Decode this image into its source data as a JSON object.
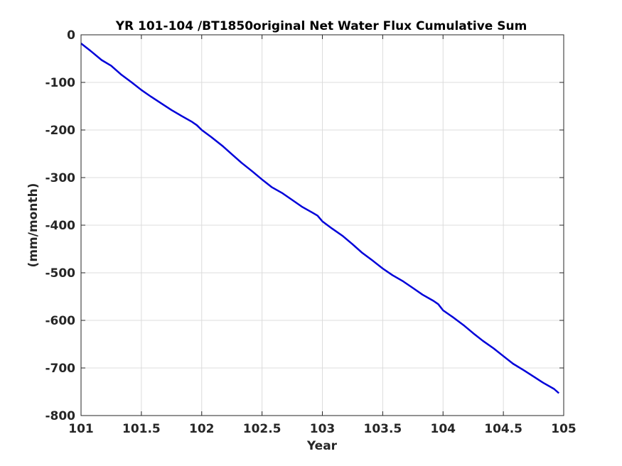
{
  "chart_data": {
    "type": "line",
    "title": "YR 101-104 /BT1850original Net Water Flux Cumulative Sum",
    "xlabel": "Year",
    "ylabel": "(mm/month)",
    "xlim": [
      101,
      105
    ],
    "ylim": [
      -800,
      0
    ],
    "xticks": [
      101,
      101.5,
      102,
      102.5,
      103,
      103.5,
      104,
      104.5,
      105
    ],
    "xtick_labels": [
      "101",
      "101.5",
      "102",
      "102.5",
      "103",
      "103.5",
      "104",
      "104.5",
      "105"
    ],
    "yticks": [
      0,
      -100,
      -200,
      -300,
      -400,
      -500,
      -600,
      -700,
      -800
    ],
    "ytick_labels": [
      "0",
      "-100",
      "-200",
      "-300",
      "-400",
      "-500",
      "-600",
      "-700",
      "-800"
    ],
    "grid": true,
    "series": [
      {
        "color": "#0000d9",
        "x": [
          101.0,
          101.08,
          101.17,
          101.25,
          101.33,
          101.42,
          101.5,
          101.58,
          101.67,
          101.75,
          101.83,
          101.92,
          101.96,
          102.0,
          102.08,
          102.17,
          102.25,
          102.33,
          102.42,
          102.5,
          102.58,
          102.67,
          102.75,
          102.83,
          102.92,
          102.96,
          103.0,
          103.08,
          103.17,
          103.25,
          103.33,
          103.42,
          103.5,
          103.58,
          103.67,
          103.75,
          103.83,
          103.92,
          103.96,
          104.0,
          104.08,
          104.17,
          104.25,
          104.33,
          104.42,
          104.5,
          104.58,
          104.67,
          104.75,
          104.83,
          104.92,
          104.96
        ],
        "y": [
          -18,
          -34,
          -53,
          -65,
          -83,
          -100,
          -116,
          -130,
          -145,
          -158,
          -170,
          -183,
          -190,
          -200,
          -215,
          -233,
          -251,
          -269,
          -287,
          -304,
          -320,
          -333,
          -347,
          -361,
          -374,
          -380,
          -392,
          -407,
          -423,
          -440,
          -458,
          -475,
          -491,
          -505,
          -518,
          -532,
          -546,
          -559,
          -566,
          -579,
          -593,
          -610,
          -627,
          -643,
          -659,
          -675,
          -691,
          -705,
          -718,
          -731,
          -744,
          -753
        ]
      }
    ]
  }
}
